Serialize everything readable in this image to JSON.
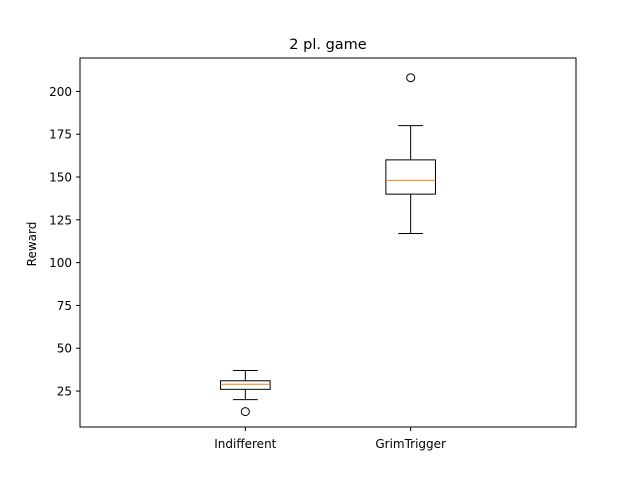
{
  "chart_data": {
    "type": "box",
    "title": "2 pl. game",
    "xlabel": "",
    "ylabel": "Reward",
    "ylim": [
      4,
      219.5
    ],
    "yticks": [
      25,
      50,
      75,
      100,
      125,
      150,
      175,
      200
    ],
    "grid": false,
    "legend": "none",
    "categories": [
      "Indifferent",
      "GrimTrigger"
    ],
    "boxes": [
      {
        "category": "Indifferent",
        "whisker_low": 20,
        "q1": 26,
        "median": 29,
        "q3": 31,
        "whisker_high": 37,
        "outliers": [
          13
        ]
      },
      {
        "category": "GrimTrigger",
        "whisker_low": 117,
        "q1": 140,
        "median": 148,
        "q3": 160,
        "whisker_high": 180,
        "outliers": [
          208
        ]
      }
    ],
    "colors": {
      "box": "#000000",
      "median": "#ff7f0e",
      "outlier": "#000000"
    }
  }
}
